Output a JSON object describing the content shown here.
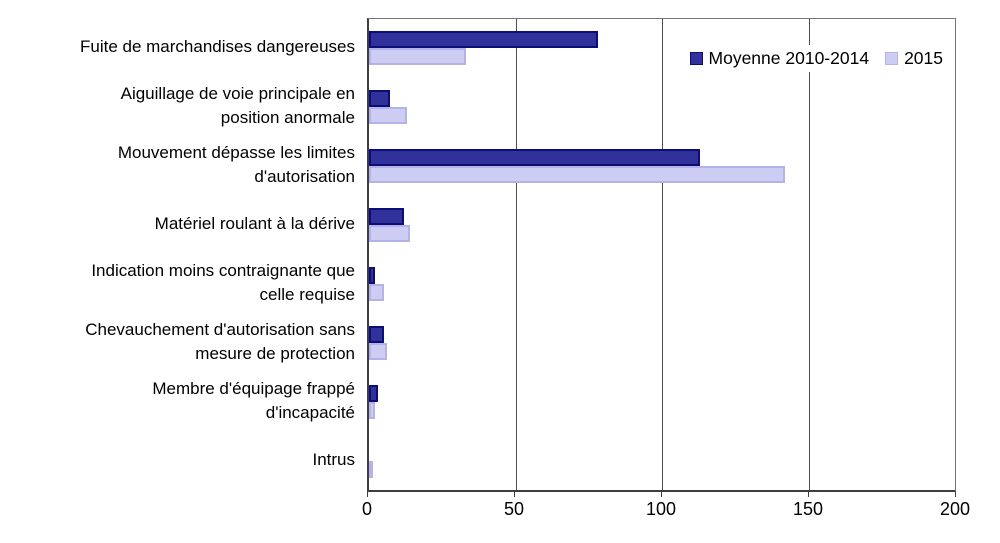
{
  "chart_data": {
    "type": "bar",
    "orientation": "horizontal",
    "title": "",
    "xlabel": "",
    "ylabel": "",
    "xlim": [
      0,
      200
    ],
    "x_ticks": [
      0,
      50,
      100,
      150,
      200
    ],
    "grid": "vertical",
    "legend_position": "top-right-inside",
    "background": "#FFFFFF",
    "gridline_color": "#4d4d4d",
    "text_color": "#000000",
    "categories": [
      "Fuite de marchandises dangereuses",
      "Aiguillage de voie principale en\nposition anormale",
      "Mouvement dépasse les limites\nd'autorisation",
      "Matériel roulant à la dérive",
      "Indication moins contraignante que\ncelle requise",
      "Chevauchement d'autorisation sans\nmesure de protection",
      "Membre d'équipage frappé\nd'incapacité",
      "Intrus"
    ],
    "series": [
      {
        "name": "Moyenne 2010-2014",
        "color": "#31319B",
        "border_color": "#0D0D78",
        "values": [
          78,
          7,
          113,
          12,
          2,
          5,
          3,
          0
        ]
      },
      {
        "name": "2015",
        "color": "#CDCDF4",
        "border_color": "#B3B3EA",
        "values": [
          33,
          13,
          142,
          14,
          5,
          6,
          2,
          1
        ]
      }
    ]
  }
}
